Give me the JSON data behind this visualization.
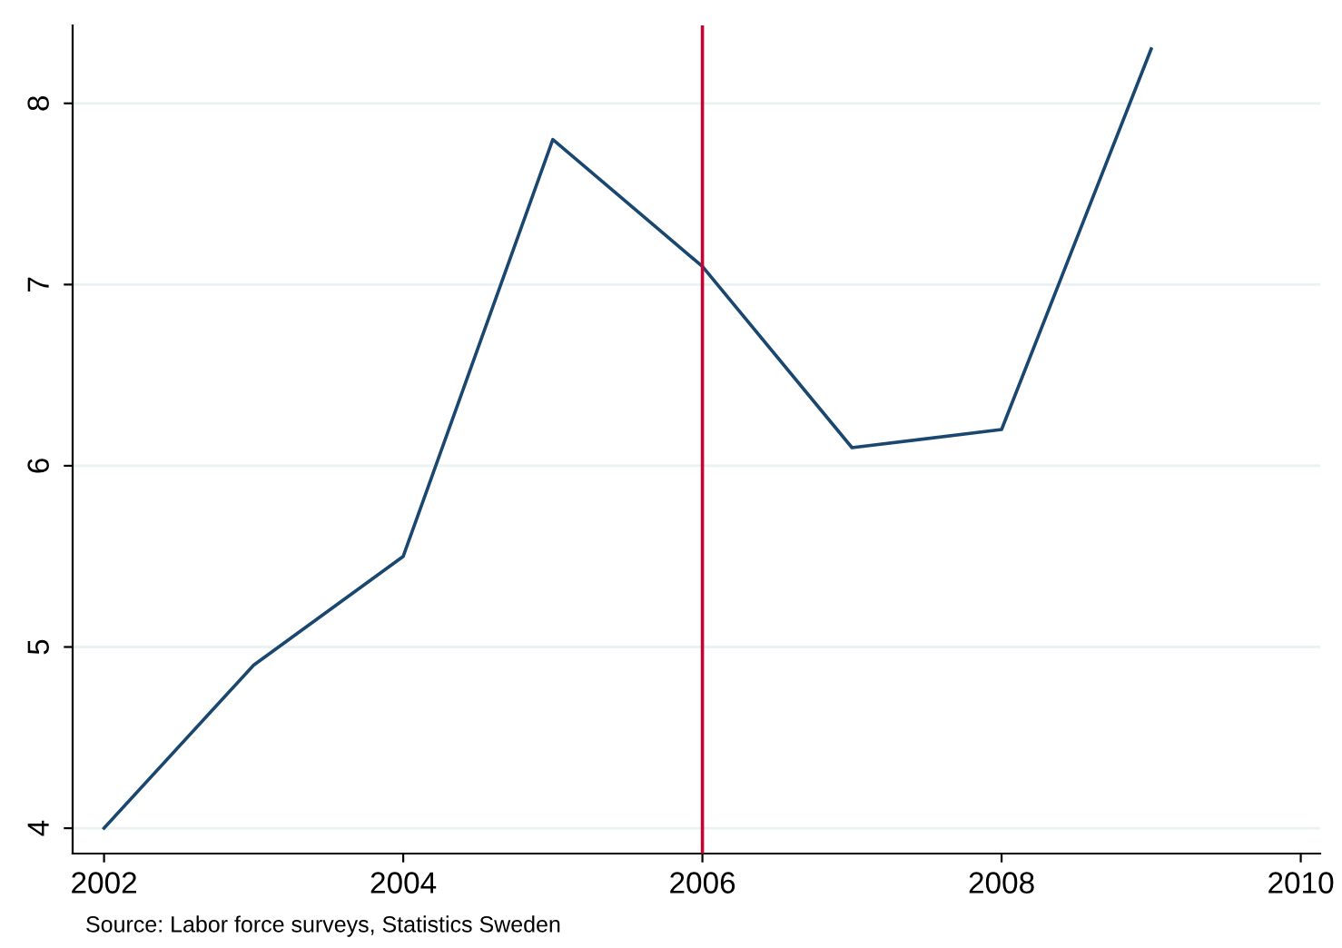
{
  "chart_data": {
    "type": "line",
    "x": [
      2002,
      2003,
      2004,
      2005,
      2006,
      2007,
      2008,
      2009
    ],
    "series": [
      {
        "color": "#1a476f",
        "values": [
          4.0,
          4.9,
          5.5,
          7.8,
          7.1,
          6.1,
          6.2,
          8.3
        ]
      }
    ],
    "xlim": [
      2001.79,
      2010.13
    ],
    "ylim": [
      3.86,
      8.43
    ],
    "xticks": [
      2002,
      2004,
      2006,
      2008,
      2010
    ],
    "yticks": [
      4,
      5,
      6,
      7,
      8
    ],
    "grid": "y",
    "marker": "none",
    "line_style": "solid",
    "ref_lines": [
      {
        "axis": "x",
        "value": 2006,
        "color": "#c10534"
      }
    ],
    "annotations": [
      "Source: Labor force surveys, Statistics Sweden"
    ]
  }
}
